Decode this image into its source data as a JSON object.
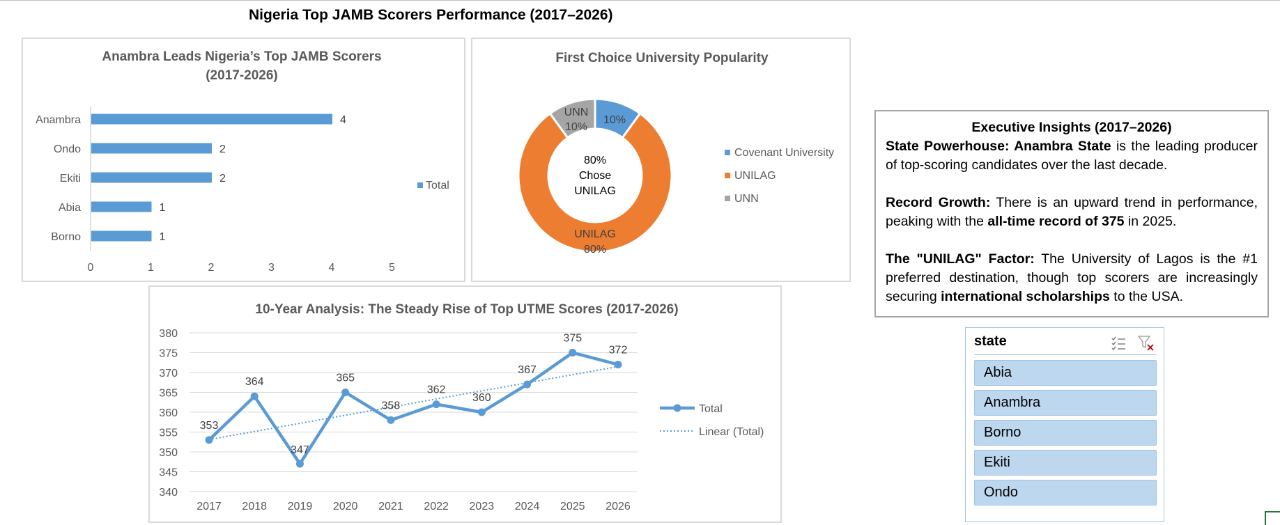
{
  "dashboard": {
    "title": "Nigeria Top JAMB Scorers Performance (2017–2026)"
  },
  "chart_data": [
    {
      "type": "bar",
      "title": "Anambra Leads Nigeria’s Top JAMB Scorers",
      "subtitle": "(2017-2026)",
      "categories": [
        "Anambra",
        "Ondo",
        "Ekiti",
        "Abia",
        "Borno"
      ],
      "series": [
        {
          "name": "Total",
          "values": [
            4,
            2,
            2,
            1,
            1
          ]
        }
      ],
      "xlim": [
        0,
        5
      ],
      "ticks": [
        "0",
        "1",
        "2",
        "3",
        "4",
        "5"
      ],
      "legend": "right",
      "color": "#5b9bd5"
    },
    {
      "type": "pie",
      "title": "First Choice University Popularity",
      "categories": [
        "Covenant University",
        "UNILAG",
        "UNN"
      ],
      "values": [
        10,
        80,
        10
      ],
      "colors": [
        "#5b9bd5",
        "#ed7d31",
        "#a5a5a5"
      ],
      "slice_labels": [
        "10%",
        "UNILAG 80%",
        "UNN 10%"
      ],
      "center_label": [
        "80%",
        "Chose",
        "UNILAG"
      ],
      "legend": "right"
    },
    {
      "type": "line",
      "title": "10-Year Analysis: The Steady Rise of Top UTME Scores (2017-2026)",
      "x": [
        "2017",
        "2018",
        "2019",
        "2020",
        "2021",
        "2022",
        "2023",
        "2024",
        "2025",
        "2026"
      ],
      "series": [
        {
          "name": "Total",
          "values": [
            353,
            364,
            347,
            365,
            358,
            362,
            360,
            367,
            375,
            372
          ]
        }
      ],
      "trendline": {
        "name": "Linear (Total)"
      },
      "ylim": [
        340,
        380
      ],
      "yticks": [
        340,
        345,
        350,
        355,
        360,
        365,
        370,
        375,
        380
      ],
      "grid": true,
      "legend": "right",
      "color": "#5b9bd5"
    }
  ],
  "insights": {
    "title": "Executive Insights (2017–2026)",
    "p1_bold": "State Powerhouse: Anambra State",
    "p1_rest": " is the leading producer of top-scoring candidates over the last decade.",
    "p2_bold": "Record Growth:",
    "p2_mid": " There is an upward trend in performance, peaking with the ",
    "p2_bold2": "all-time record of 375",
    "p2_end": " in 2025.",
    "p3_bold": "The \"UNILAG\" Factor:",
    "p3_mid": " The University of Lagos is the #1 preferred destination, though top scorers are increasingly securing ",
    "p3_bold2": "international scholarships",
    "p3_end": " to the USA."
  },
  "slicer": {
    "title": "state",
    "items": [
      "Abia",
      "Anambra",
      "Borno",
      "Ekiti",
      "Ondo"
    ],
    "icons": [
      "multi-select-icon",
      "clear-filter-icon"
    ]
  }
}
